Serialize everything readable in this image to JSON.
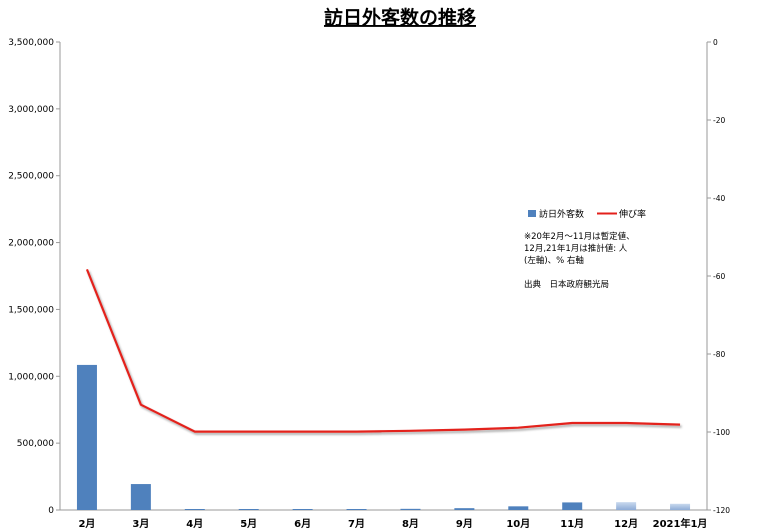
{
  "chart_data": {
    "type": "bar",
    "title": "訪日外客数の推移",
    "categories": [
      "2月",
      "3月",
      "4月",
      "5月",
      "6月",
      "7月",
      "8月",
      "9月",
      "10月",
      "11月",
      "12月",
      "2021年1月"
    ],
    "series": [
      {
        "name": "訪日外客数",
        "type": "bar",
        "axis": "left",
        "color": "#4f81bd",
        "values": [
          1085000,
          194000,
          2900,
          1700,
          2600,
          3800,
          8700,
          13700,
          27400,
          56700,
          58700,
          46500
        ],
        "estimated": [
          false,
          false,
          false,
          false,
          false,
          false,
          false,
          false,
          false,
          false,
          true,
          true
        ]
      },
      {
        "name": "伸び率",
        "type": "line",
        "axis": "right",
        "color": "#e3201b",
        "values": [
          -58.3,
          -93.0,
          -99.9,
          -99.9,
          -99.9,
          -99.9,
          -99.7,
          -99.4,
          -98.9,
          -97.7,
          -97.7,
          -98.1
        ]
      }
    ],
    "y_left": {
      "ylim": [
        0,
        3500000
      ],
      "ticks": [
        0,
        500000,
        1000000,
        1500000,
        2000000,
        2500000,
        3000000,
        3500000
      ],
      "tick_labels": [
        "0",
        "500,000",
        "1,000,000",
        "1,500,000",
        "2,000,000",
        "2,500,000",
        "3,000,000",
        "3,500,000"
      ]
    },
    "y_right": {
      "ylim": [
        -120,
        0
      ],
      "ticks": [
        0,
        -20,
        -40,
        -60,
        -80,
        -100,
        -120
      ],
      "tick_labels": [
        "0",
        "-20",
        "-40",
        "-60",
        "-80",
        "-100",
        "-120"
      ]
    },
    "legend": {
      "placement": "right",
      "items": [
        "訪日外客数",
        "伸び率"
      ]
    },
    "notes": [
      "※20年2月～11月は暫定値、",
      "12月,21年1月は推計値: 人",
      "(左軸)、% 右軸",
      "",
      "出典　日本政府観光局"
    ],
    "grid": false
  }
}
